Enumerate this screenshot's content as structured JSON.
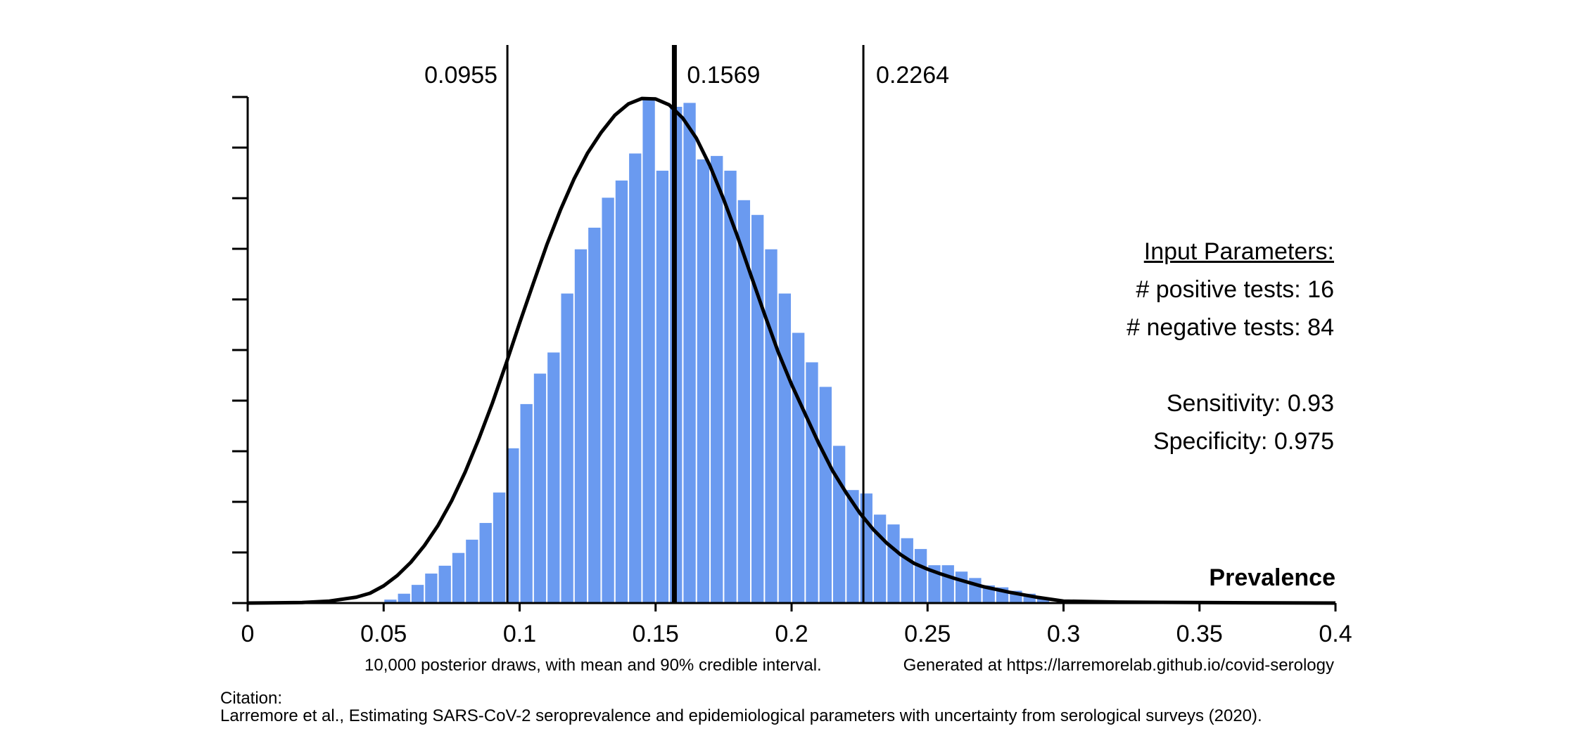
{
  "chart_data": {
    "type": "bar",
    "xlabel": "Prevalence",
    "xlim": [
      0,
      0.4
    ],
    "x_ticks": [
      {
        "value": 0,
        "label": "0"
      },
      {
        "value": 0.05,
        "label": "0.05"
      },
      {
        "value": 0.1,
        "label": "0.1"
      },
      {
        "value": 0.15,
        "label": "0.15"
      },
      {
        "value": 0.2,
        "label": "0.2"
      },
      {
        "value": 0.25,
        "label": "0.25"
      },
      {
        "value": 0.3,
        "label": "0.3"
      },
      {
        "value": 0.35,
        "label": "0.35"
      },
      {
        "value": 0.4,
        "label": "0.4"
      }
    ],
    "y_tick_count": 11,
    "bin_width": 0.005,
    "bin_starts": [
      0.045,
      0.05,
      0.055,
      0.06,
      0.065,
      0.07,
      0.075,
      0.08,
      0.085,
      0.09,
      0.095,
      0.1,
      0.105,
      0.11,
      0.115,
      0.12,
      0.125,
      0.13,
      0.135,
      0.14,
      0.145,
      0.15,
      0.155,
      0.16,
      0.165,
      0.17,
      0.175,
      0.18,
      0.185,
      0.19,
      0.195,
      0.2,
      0.205,
      0.21,
      0.215,
      0.22,
      0.225,
      0.23,
      0.235,
      0.24,
      0.245,
      0.25,
      0.255,
      0.26,
      0.265,
      0.27,
      0.275,
      0.28,
      0.285,
      0.29,
      0.295
    ],
    "values": [
      0.2,
      0.7,
      1.9,
      3.7,
      6.0,
      7.6,
      10.2,
      12.9,
      16.3,
      22.5,
      31.5,
      40.5,
      46.7,
      51.0,
      63.0,
      72.0,
      76.4,
      82.5,
      86.0,
      91.5,
      102.5,
      88.0,
      101.0,
      101.8,
      90.3,
      91.0,
      88.0,
      82.0,
      79.0,
      72.0,
      63.0,
      55.0,
      49.0,
      44.0,
      32.0,
      23.0,
      22.3,
      18.0,
      16.0,
      13.2,
      11.0,
      7.7,
      7.7,
      6.4,
      5.1,
      3.6,
      3.2,
      2.5,
      1.9,
      1.1,
      0.2
    ],
    "ylim": [
      0,
      103
    ],
    "density_curve": {
      "x": [
        0,
        0.02,
        0.03,
        0.04,
        0.045,
        0.05,
        0.055,
        0.06,
        0.065,
        0.07,
        0.075,
        0.08,
        0.085,
        0.09,
        0.095,
        0.1,
        0.105,
        0.11,
        0.115,
        0.12,
        0.125,
        0.13,
        0.135,
        0.14,
        0.145,
        0.15,
        0.155,
        0.16,
        0.165,
        0.17,
        0.175,
        0.18,
        0.185,
        0.19,
        0.195,
        0.2,
        0.205,
        0.21,
        0.215,
        0.22,
        0.225,
        0.23,
        0.235,
        0.24,
        0.245,
        0.25,
        0.255,
        0.26,
        0.265,
        0.27,
        0.28,
        0.29,
        0.3,
        0.32,
        0.35,
        0.4
      ],
      "y": [
        0,
        0.1,
        0.4,
        1.2,
        2.0,
        3.5,
        5.6,
        8.3,
        11.7,
        15.8,
        20.8,
        26.7,
        33.4,
        40.7,
        48.7,
        57.0,
        65.0,
        72.9,
        80.0,
        86.3,
        91.6,
        95.8,
        99.3,
        101.6,
        102.7,
        102.6,
        101.4,
        98.7,
        94.6,
        89.0,
        82.2,
        74.8,
        66.8,
        58.9,
        51.2,
        44.5,
        38.5,
        32.5,
        27.0,
        22.5,
        18.4,
        15.0,
        12.2,
        9.9,
        8.1,
        6.9,
        5.9,
        5.0,
        4.2,
        3.4,
        2.2,
        1.2,
        0.4,
        0.2,
        0.1,
        0
      ]
    },
    "reference_lines": [
      {
        "x": 0.0955,
        "label": "0.0955",
        "emphasis": false
      },
      {
        "x": 0.1569,
        "label": "0.1569",
        "emphasis": true
      },
      {
        "x": 0.2264,
        "label": "0.2264",
        "emphasis": false
      }
    ],
    "bar_color": "#6a9af0",
    "line_color": "#000000"
  },
  "input_parameters": {
    "title": "Input Parameters:",
    "positive_tests": "# positive tests: 16",
    "negative_tests": "# negative tests: 84",
    "sensitivity": "Sensitivity: 0.93",
    "specificity": "Specificity: 0.975"
  },
  "captions": {
    "draws_note": "10,000 posterior draws, with mean and 90% credible interval.",
    "generated_at": "Generated at https://larremorelab.github.io/covid-serology",
    "citation_label": "Citation:",
    "citation_text": "Larremore et al., Estimating SARS-CoV-2 seroprevalence and epidemiological parameters with uncertainty from serological surveys (2020)."
  }
}
